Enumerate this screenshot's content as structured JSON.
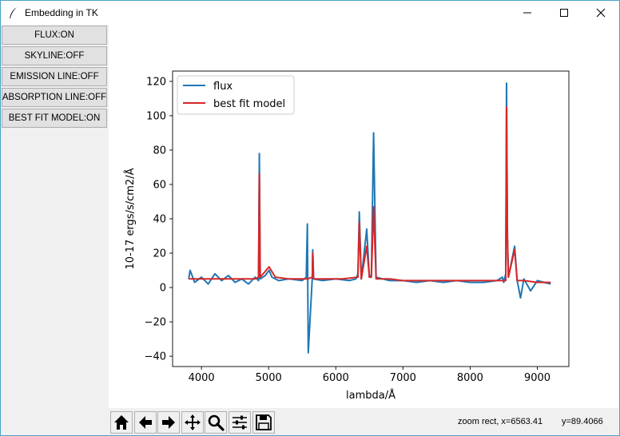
{
  "window": {
    "title": "Embedding in TK",
    "icons": {
      "app": "feather-icon",
      "minimize": "minimize-icon",
      "maximize": "maximize-icon",
      "close": "close-icon"
    }
  },
  "sidebar": {
    "buttons": [
      {
        "label": "FLUX:ON"
      },
      {
        "label": "SKYLINE:OFF"
      },
      {
        "label": "EMISSION LINE:OFF"
      },
      {
        "label": "ABSORPTION LINE:OFF"
      },
      {
        "label": "BEST FIT MODEL:ON"
      }
    ]
  },
  "toolbar": {
    "icons": [
      "home-icon",
      "back-arrow-icon",
      "forward-arrow-icon",
      "pan-icon",
      "zoom-icon",
      "subplots-icon",
      "save-icon"
    ],
    "status_mode": "zoom rect, x=6563.41",
    "status_y": "y=89.4066"
  },
  "chart_data": {
    "type": "line",
    "xlabel": "lambda/Å",
    "ylabel": "10-17 ergs/s/cm2/Å",
    "xlim": [
      3570,
      9470
    ],
    "ylim": [
      -46,
      126
    ],
    "xticks": [
      4000,
      5000,
      6000,
      7000,
      8000,
      9000
    ],
    "yticks": [
      -40,
      -20,
      0,
      20,
      40,
      60,
      80,
      100,
      120
    ],
    "grid": false,
    "legend_position": "top-left",
    "series": [
      {
        "name": "flux",
        "color": "#1f77b4",
        "x": [
          3810,
          3830,
          3900,
          4000,
          4100,
          4200,
          4300,
          4400,
          4500,
          4600,
          4700,
          4800,
          4850,
          4862,
          4875,
          4950,
          5007,
          5050,
          5150,
          5300,
          5500,
          5560,
          5577,
          5590,
          5650,
          5657,
          5670,
          5800,
          6000,
          6200,
          6300,
          6330,
          6350,
          6380,
          6460,
          6500,
          6530,
          6563,
          6600,
          6700,
          6800,
          7000,
          7200,
          7400,
          7600,
          7800,
          8000,
          8200,
          8400,
          8480,
          8500,
          8530,
          8542,
          8555,
          8570,
          8662,
          8700,
          8750,
          8800,
          8900,
          9000,
          9100,
          9200
        ],
        "y": [
          5,
          10,
          3,
          6,
          2,
          8,
          4,
          7,
          3,
          5,
          2,
          6,
          4,
          78,
          5,
          7,
          10,
          6,
          4,
          5,
          4,
          6,
          37,
          -38,
          6,
          22,
          5,
          4,
          5,
          4,
          5,
          8,
          44,
          5,
          34,
          6,
          7,
          90,
          6,
          5,
          4,
          4,
          3,
          4,
          3,
          4,
          3,
          3,
          4,
          6,
          3,
          8,
          119,
          30,
          6,
          24,
          4,
          -6,
          5,
          -2,
          4,
          3,
          2
        ]
      },
      {
        "name": "best fit model",
        "color": "#d62728",
        "x": [
          3810,
          3900,
          4000,
          4200,
          4400,
          4600,
          4800,
          4850,
          4862,
          4875,
          5007,
          5100,
          5300,
          5500,
          5577,
          5650,
          5657,
          5670,
          5900,
          6100,
          6330,
          6350,
          6380,
          6460,
          6500,
          6530,
          6563,
          6600,
          6800,
          7000,
          7400,
          7800,
          8200,
          8500,
          8530,
          8542,
          8555,
          8570,
          8662,
          8700,
          8800,
          9000,
          9200
        ],
        "y": [
          5,
          5,
          5,
          5,
          5,
          5,
          5,
          6,
          66,
          6,
          12,
          6,
          5,
          5,
          5,
          6,
          20,
          5,
          5,
          5,
          6,
          38,
          5,
          24,
          6,
          6,
          47,
          5,
          5,
          4,
          4,
          4,
          4,
          4,
          4,
          105,
          30,
          6,
          22,
          4,
          4,
          3,
          3
        ]
      }
    ]
  }
}
